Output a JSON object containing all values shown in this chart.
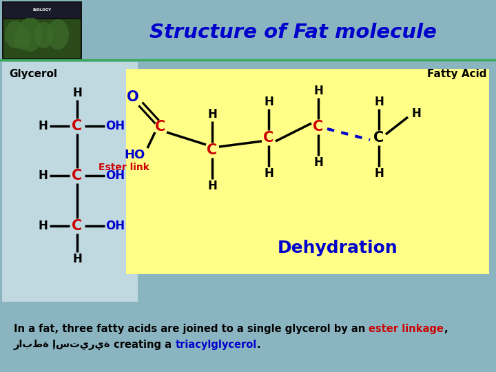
{
  "title": "Structure of Fat molecule",
  "title_color": "#0000cc",
  "bg_color": "#8ab4c0",
  "glycerol_bg": "#c0d8e0",
  "fatty_acid_bg": "#ffff88",
  "glycerol_label": "Glycerol",
  "fatty_acid_label": "Fatty Acid",
  "ester_link_label": "Ester link",
  "dehydration_label": "Dehydration",
  "bottom_line1_a": "In a fat, three fatty acids are joined to a single glycerol by an ",
  "bottom_line1_b": "ester linkage",
  "bottom_line1_c": ",",
  "bottom_line2_a": "رابطة إستيرية",
  "bottom_line2_b": " creating a ",
  "bottom_line2_c": "triacylglycerol",
  "bottom_line2_d": "."
}
